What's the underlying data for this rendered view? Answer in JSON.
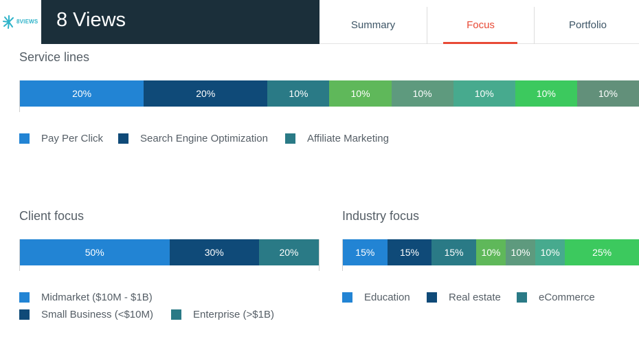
{
  "header": {
    "logo_text": "8VIEWS",
    "company_name": "8 Views",
    "tabs": [
      {
        "label": "Summary",
        "active": false
      },
      {
        "label": "Focus",
        "active": true
      },
      {
        "label": "Portfolio",
        "active": false
      }
    ],
    "accent_color": "#e84a36"
  },
  "service_lines": {
    "title": "Service lines",
    "segments": [
      {
        "label": "20%",
        "value": 20,
        "color": "#2284d4"
      },
      {
        "label": "20%",
        "value": 20,
        "color": "#0f4a78"
      },
      {
        "label": "10%",
        "value": 10,
        "color": "#2a7a86"
      },
      {
        "label": "10%",
        "value": 10,
        "color": "#5fb85a"
      },
      {
        "label": "10%",
        "value": 10,
        "color": "#5e9a7e"
      },
      {
        "label": "10%",
        "value": 10,
        "color": "#47aa8e"
      },
      {
        "label": "10%",
        "value": 10,
        "color": "#3cc95e"
      },
      {
        "label": "10%",
        "value": 10,
        "color": "#62907a"
      }
    ],
    "legend": [
      {
        "label": "Pay Per Click",
        "color": "#2284d4"
      },
      {
        "label": "Search Engine Optimization",
        "color": "#0f4a78"
      },
      {
        "label": "Affiliate Marketing",
        "color": "#2a7a86"
      }
    ]
  },
  "client_focus": {
    "title": "Client focus",
    "segments": [
      {
        "label": "50%",
        "value": 50,
        "color": "#2284d4"
      },
      {
        "label": "30%",
        "value": 30,
        "color": "#0f4a78"
      },
      {
        "label": "20%",
        "value": 20,
        "color": "#2a7a86"
      }
    ],
    "legend": [
      {
        "label": "Midmarket ($10M - $1B)",
        "color": "#2284d4"
      },
      {
        "label": "Small Business (<$10M)",
        "color": "#0f4a78"
      },
      {
        "label": "Enterprise (>$1B)",
        "color": "#2a7a86"
      }
    ]
  },
  "industry_focus": {
    "title": "Industry focus",
    "segments": [
      {
        "label": "15%",
        "value": 15,
        "color": "#2284d4"
      },
      {
        "label": "15%",
        "value": 15,
        "color": "#0f4a78"
      },
      {
        "label": "15%",
        "value": 15,
        "color": "#2a7a86"
      },
      {
        "label": "10%",
        "value": 10,
        "color": "#5fb85a"
      },
      {
        "label": "10%",
        "value": 10,
        "color": "#5e9a7e"
      },
      {
        "label": "10%",
        "value": 10,
        "color": "#47aa8e"
      },
      {
        "label": "25%",
        "value": 25,
        "color": "#3cc95e"
      }
    ],
    "legend": [
      {
        "label": "Education",
        "color": "#2284d4"
      },
      {
        "label": "Real estate",
        "color": "#0f4a78"
      },
      {
        "label": "eCommerce",
        "color": "#2a7a86"
      }
    ]
  }
}
